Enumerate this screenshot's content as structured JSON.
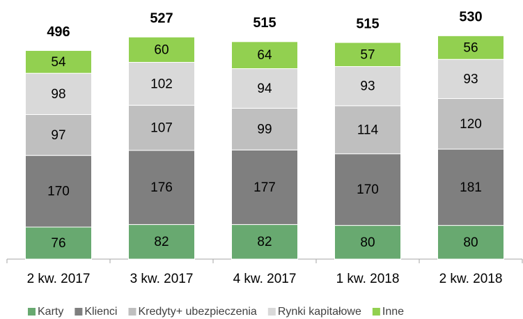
{
  "chart_data": {
    "type": "stacked_bar",
    "categories": [
      "2 kw. 2017",
      "3 kw. 2017",
      "4 kw. 2017",
      "1 kw. 2018",
      "2 kw. 2018"
    ],
    "series": [
      {
        "name": "Karty",
        "color": "#68a970",
        "values": [
          76,
          82,
          82,
          80,
          80
        ]
      },
      {
        "name": "Klienci",
        "color": "#7f7f7f",
        "values": [
          170,
          176,
          177,
          170,
          181
        ]
      },
      {
        "name": "Kredyty+ ubezpieczenia",
        "color": "#bfbfbf",
        "values": [
          97,
          107,
          99,
          114,
          120
        ]
      },
      {
        "name": "Rynki kapitałowe",
        "color": "#d9d9d9",
        "values": [
          98,
          102,
          94,
          93,
          93
        ]
      },
      {
        "name": "Inne",
        "color": "#92d050",
        "values": [
          54,
          60,
          64,
          57,
          56
        ]
      }
    ],
    "totals": [
      496,
      527,
      515,
      515,
      530
    ],
    "legend": "bottom"
  }
}
